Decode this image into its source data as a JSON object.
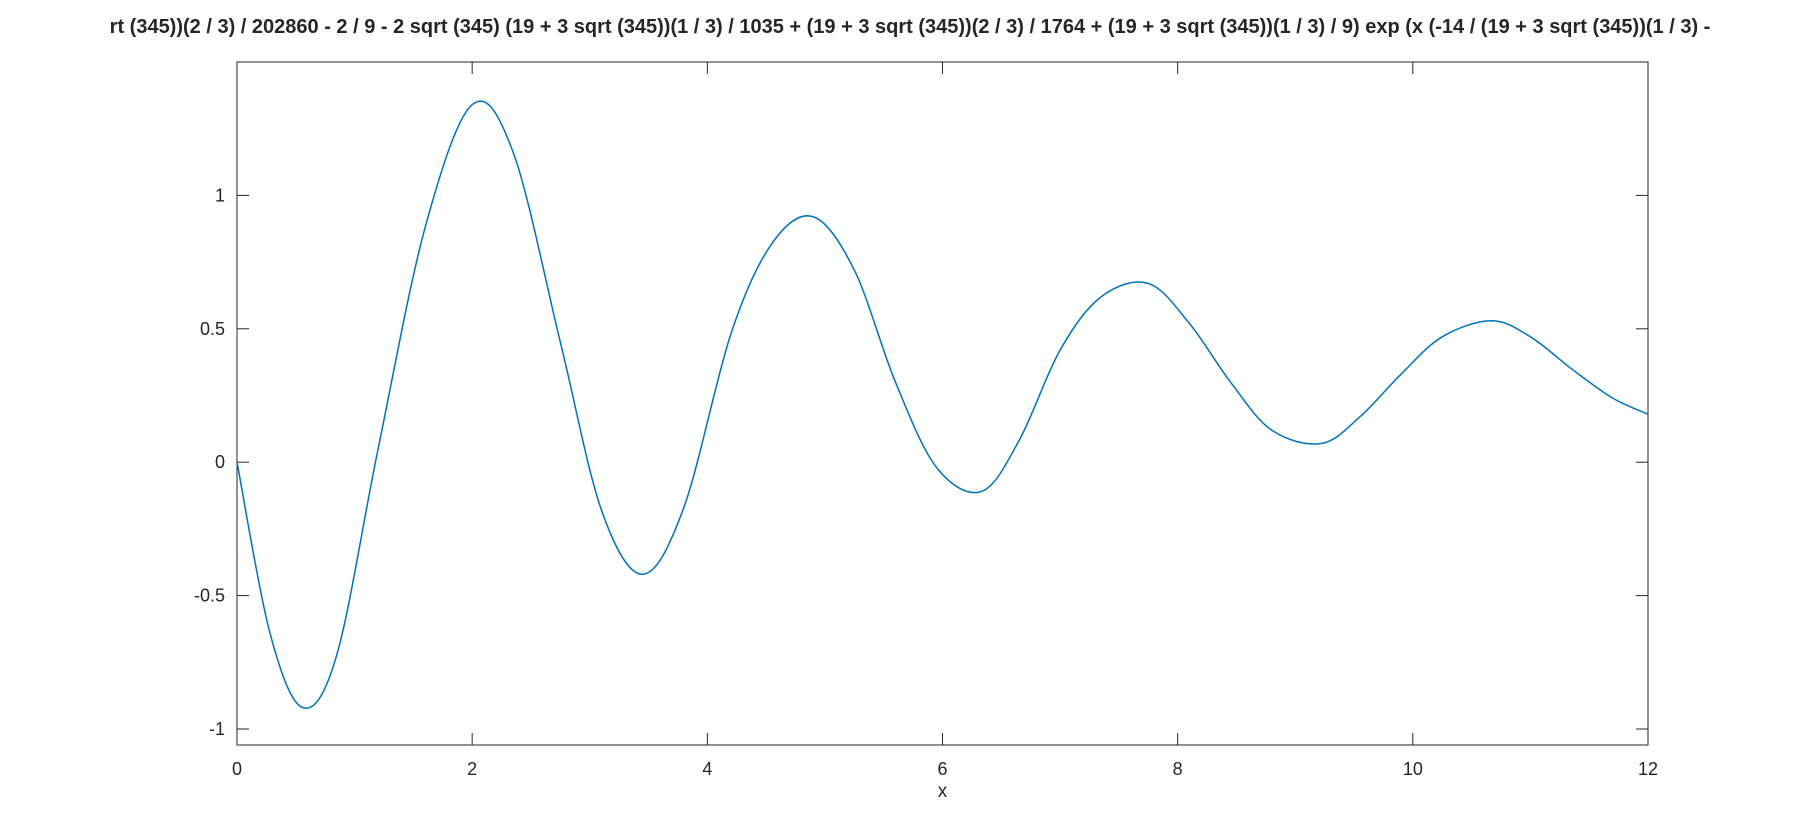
{
  "chart_data": {
    "type": "line",
    "title": "rt (345))(2 / 3) / 202860 - 2 / 9 - 2 sqrt (345) (19 + 3 sqrt (345))(1 / 3) / 1035 + (19 + 3 sqrt (345))(2 / 3) / 1764 + (19 + 3 sqrt (345))(1 / 3) / 9) exp (x (-14 / (19 + 3 sqrt (345))(1 / 3) -",
    "xlabel": "x",
    "ylabel": "",
    "xlim": [
      0,
      12
    ],
    "ylim": [
      -1.06,
      1.5
    ],
    "x_ticks": [
      0,
      2,
      4,
      6,
      8,
      10,
      12
    ],
    "x_tick_labels": [
      "0",
      "2",
      "4",
      "6",
      "8",
      "10",
      "12"
    ],
    "y_ticks": [
      -1,
      -0.5,
      0,
      0.5,
      1
    ],
    "y_tick_labels": [
      "-1",
      "-0.5",
      "0",
      "0.5",
      "1"
    ],
    "grid": false,
    "line_color": "#0072bd",
    "series": [
      {
        "x": [
          0,
          0.28,
          0.56,
          0.85,
          1.2,
          1.6,
          2.0,
          2.35,
          2.75,
          3.1,
          3.45,
          3.8,
          4.2,
          4.55,
          4.9,
          5.25,
          5.6,
          5.95,
          6.33,
          6.65,
          7.0,
          7.35,
          7.75,
          8.1,
          8.45,
          8.8,
          9.22,
          9.55,
          9.9,
          10.25,
          10.67,
          11.0,
          11.35,
          11.7,
          12.0
        ],
        "y": [
          0,
          -0.64,
          -0.92,
          -0.72,
          0.05,
          0.88,
          1.34,
          1.16,
          0.45,
          -0.18,
          -0.42,
          -0.17,
          0.48,
          0.82,
          0.92,
          0.72,
          0.3,
          -0.02,
          -0.11,
          0.08,
          0.42,
          0.62,
          0.67,
          0.52,
          0.3,
          0.12,
          0.07,
          0.17,
          0.33,
          0.47,
          0.53,
          0.47,
          0.35,
          0.24,
          0.18
        ]
      }
    ]
  }
}
